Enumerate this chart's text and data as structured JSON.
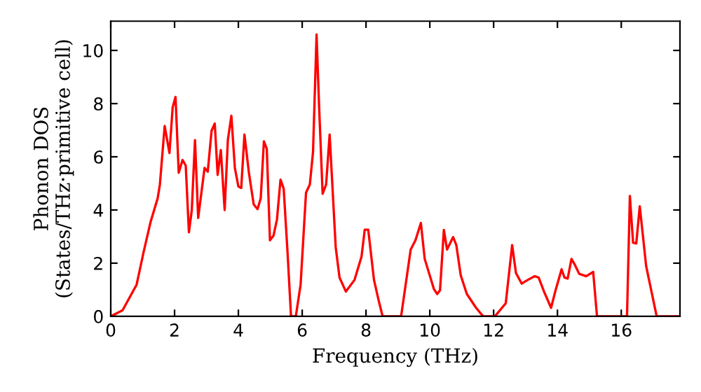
{
  "chart_data": {
    "type": "line",
    "xlabel": "Frequency (THz)",
    "ylabel": "Phonon DOS\n(States/THz·primitive cell)",
    "x": [
      0,
      0.37,
      0.81,
      1.03,
      1.25,
      1.47,
      1.54,
      1.69,
      1.84,
      1.94,
      2.03,
      2.13,
      2.25,
      2.35,
      2.45,
      2.54,
      2.64,
      2.74,
      2.94,
      3.04,
      3.16,
      3.26,
      3.35,
      3.45,
      3.57,
      3.67,
      3.78,
      3.89,
      4.0,
      4.09,
      4.19,
      4.33,
      4.48,
      4.6,
      4.7,
      4.8,
      4.89,
      4.99,
      5.1,
      5.21,
      5.32,
      5.42,
      5.54,
      5.65,
      5.8,
      5.95,
      6.12,
      6.24,
      6.34,
      6.45,
      6.53,
      6.64,
      6.75,
      6.86,
      7.05,
      7.17,
      7.37,
      7.64,
      7.86,
      7.96,
      8.07,
      8.25,
      8.4,
      8.52,
      9.1,
      9.4,
      9.55,
      9.72,
      9.84,
      10.13,
      10.23,
      10.32,
      10.44,
      10.54,
      10.73,
      10.83,
      10.97,
      11.16,
      11.45,
      11.67,
      12.04,
      12.38,
      12.58,
      12.7,
      12.88,
      13.07,
      13.29,
      13.41,
      13.58,
      13.8,
      13.95,
      14.13,
      14.22,
      14.32,
      14.44,
      14.54,
      14.68,
      14.9,
      15.12,
      15.24,
      16.18,
      16.27,
      16.37,
      16.47,
      16.58,
      16.78,
      17.11,
      17.84
    ],
    "series": [
      {
        "color": "#ff0000",
        "values": [
          0,
          0.23,
          1.19,
          2.42,
          3.56,
          4.44,
          4.96,
          7.16,
          6.14,
          7.86,
          8.25,
          5.4,
          5.88,
          5.67,
          3.16,
          4.0,
          6.63,
          3.7,
          5.58,
          5.44,
          6.98,
          7.25,
          5.32,
          6.25,
          4.0,
          6.63,
          7.54,
          5.58,
          4.88,
          4.83,
          6.84,
          5.4,
          4.21,
          4.03,
          4.44,
          6.58,
          6.3,
          2.86,
          3.03,
          3.65,
          5.14,
          4.8,
          2.42,
          0,
          0,
          1.19,
          4.65,
          4.96,
          6.19,
          10.6,
          7.89,
          4.61,
          4.96,
          6.84,
          2.6,
          1.46,
          0.93,
          1.37,
          2.25,
          3.26,
          3.26,
          1.37,
          0.58,
          0,
          0,
          2.51,
          2.86,
          3.51,
          2.16,
          1.02,
          0.84,
          0.98,
          3.25,
          2.51,
          2.98,
          2.68,
          1.54,
          0.84,
          0.32,
          0,
          0,
          0.49,
          2.68,
          1.63,
          1.23,
          1.37,
          1.51,
          1.46,
          0.93,
          0.32,
          1.02,
          1.77,
          1.46,
          1.42,
          2.16,
          1.95,
          1.6,
          1.51,
          1.67,
          0,
          0,
          4.53,
          2.77,
          2.74,
          4.14,
          1.89,
          0,
          0
        ]
      }
    ],
    "xlim": [
      0,
      17.84
    ],
    "ylim": [
      0,
      11.1
    ],
    "xticks": [
      0,
      2,
      4,
      6,
      8,
      10,
      12,
      14,
      16
    ],
    "yticks": [
      0,
      2,
      4,
      6,
      8,
      10
    ],
    "grid": false,
    "line_style": "solid"
  }
}
